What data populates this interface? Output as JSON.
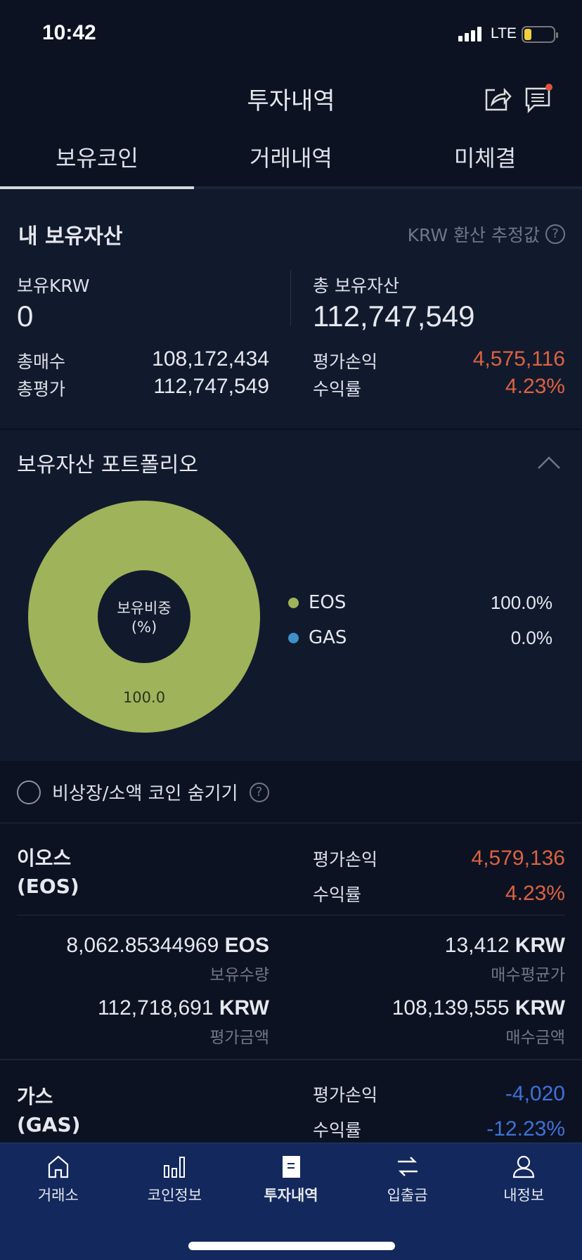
{
  "status": {
    "time": "10:42",
    "network": "LTE"
  },
  "header": {
    "title": "투자내역",
    "icons": [
      "share-icon",
      "chat-icon"
    ]
  },
  "tabs": [
    "보유코인",
    "거래내역",
    "미체결"
  ],
  "summary": {
    "title": "내 보유자산",
    "note": "KRW 환산 추정값",
    "krw_label": "보유KRW",
    "krw_value": "0",
    "total_label": "총 보유자산",
    "total_value": "112,747,549",
    "buy_label": "총매수",
    "buy_value": "108,172,434",
    "eval_label": "총평가",
    "eval_value": "112,747,549",
    "pl_label": "평가손익",
    "pl_value": "4,575,116",
    "rate_label": "수익률",
    "rate_value": "4.23%"
  },
  "portfolio": {
    "title": "보유자산 포트폴리오",
    "center_label_1": "보유비중",
    "center_label_2": "(%)",
    "slice_label": "100.0",
    "legend": [
      {
        "name": "EOS",
        "value": "100.0%",
        "color": "#9fb35a"
      },
      {
        "name": "GAS",
        "value": "0.0%",
        "color": "#3f8fc8"
      }
    ]
  },
  "chart_data": {
    "type": "pie",
    "categories": [
      "EOS",
      "GAS"
    ],
    "values": [
      100.0,
      0.0
    ],
    "colors": [
      "#9fb35a",
      "#3f8fc8"
    ],
    "donut": true,
    "center_label": "보유비중 (%)",
    "legend_placement": "right"
  },
  "filter": {
    "label": "비상장/소액 코인 숨기기",
    "checked": false
  },
  "coins": [
    {
      "name": "이오스",
      "ticker": "(EOS)",
      "pl_label": "평가손익",
      "pl": "4,579,136",
      "rate_label": "수익률",
      "rate": "4.23%",
      "sign": "pos",
      "qty": "8,062.85344969",
      "qty_unit": "EOS",
      "qty_label": "보유수량",
      "avg": "13,412",
      "avg_unit": "KRW",
      "avg_label": "매수평균가",
      "eval": "112,718,691",
      "eval_unit": "KRW",
      "eval_label": "평가금액",
      "buy": "108,139,555",
      "buy_unit": "KRW",
      "buy_label": "매수금액"
    },
    {
      "name": "가스",
      "ticker": "(GAS)",
      "pl_label": "평가손익",
      "pl": "-4,020",
      "rate_label": "수익률",
      "rate": "-12.23%",
      "sign": "neg"
    }
  ],
  "nav": [
    {
      "label": "거래소",
      "icon": "home-icon"
    },
    {
      "label": "코인정보",
      "icon": "chart-icon"
    },
    {
      "label": "투자내역",
      "icon": "document-icon",
      "active": true
    },
    {
      "label": "입출금",
      "icon": "transfer-icon"
    },
    {
      "label": "내정보",
      "icon": "user-icon"
    }
  ],
  "colors": {
    "positive": "#dc6240",
    "negative": "#3f72d8",
    "nav_bg": "#13285c"
  }
}
